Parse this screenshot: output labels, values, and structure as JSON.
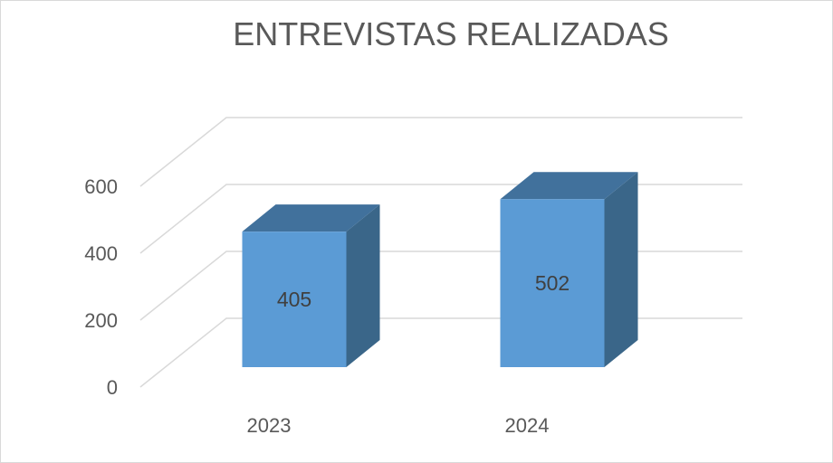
{
  "chart_data": {
    "type": "bar",
    "title": "ENTREVISTAS REALIZADAS",
    "categories": [
      "2023",
      "2024"
    ],
    "series": [
      {
        "values": [
          405,
          502
        ]
      }
    ],
    "data_labels": [
      "405",
      "502"
    ],
    "ylim": [
      0,
      600
    ],
    "yticks": [
      0,
      200,
      400,
      600
    ],
    "ytick_labels": [
      "0",
      "200",
      "400",
      "600"
    ],
    "grid": true,
    "legend": "none",
    "style": "3d-column",
    "colors": {
      "front": "#5b9bd5",
      "top": "#41719c",
      "side": "#3a6689",
      "grid": "#d9d9d9",
      "text": "#595959"
    }
  }
}
